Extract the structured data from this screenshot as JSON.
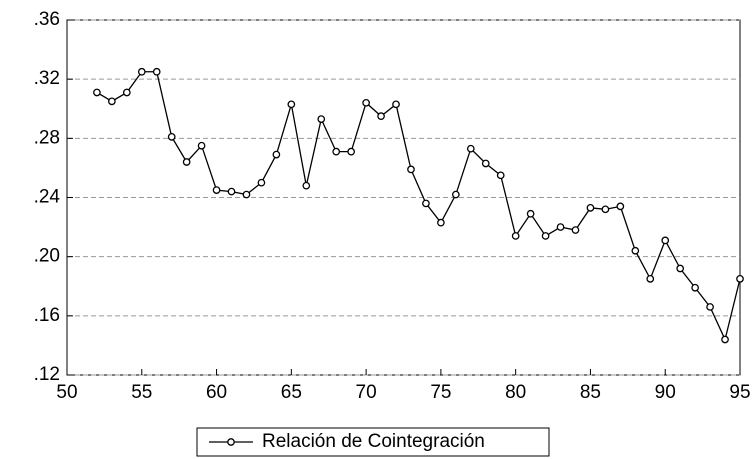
{
  "chart_data": {
    "type": "line",
    "x": [
      52,
      53,
      54,
      55,
      56,
      57,
      58,
      59,
      60,
      61,
      62,
      63,
      64,
      65,
      66,
      67,
      68,
      69,
      70,
      71,
      72,
      73,
      74,
      75,
      76,
      77,
      78,
      79,
      80,
      81,
      82,
      83,
      84,
      85,
      86,
      87,
      88,
      89,
      90,
      91,
      92,
      93,
      94,
      95
    ],
    "series": [
      {
        "name": "Relación de Cointegración",
        "color": "#000000",
        "values": [
          0.311,
          0.305,
          0.311,
          0.325,
          0.325,
          0.281,
          0.264,
          0.275,
          0.245,
          0.244,
          0.242,
          0.25,
          0.269,
          0.303,
          0.248,
          0.293,
          0.271,
          0.271,
          0.304,
          0.295,
          0.303,
          0.259,
          0.236,
          0.223,
          0.242,
          0.273,
          0.263,
          0.255,
          0.214,
          0.229,
          0.214,
          0.22,
          0.218,
          0.233,
          0.232,
          0.234,
          0.204,
          0.185,
          0.211,
          0.192,
          0.179,
          0.166,
          0.144,
          0.185
        ]
      }
    ],
    "xlim": [
      50,
      95
    ],
    "xticks": [
      50,
      55,
      60,
      65,
      70,
      75,
      80,
      85,
      90,
      95
    ],
    "ylim": [
      0.12,
      0.36
    ],
    "yticks": [
      {
        "value": 0.12,
        "label": ".12"
      },
      {
        "value": 0.16,
        "label": ".16"
      },
      {
        "value": 0.2,
        "label": ".20"
      },
      {
        "value": 0.24,
        "label": ".24"
      },
      {
        "value": 0.28,
        "label": ".28"
      },
      {
        "value": 0.32,
        "label": ".32"
      },
      {
        "value": 0.36,
        "label": ".36"
      }
    ],
    "grid": true
  }
}
